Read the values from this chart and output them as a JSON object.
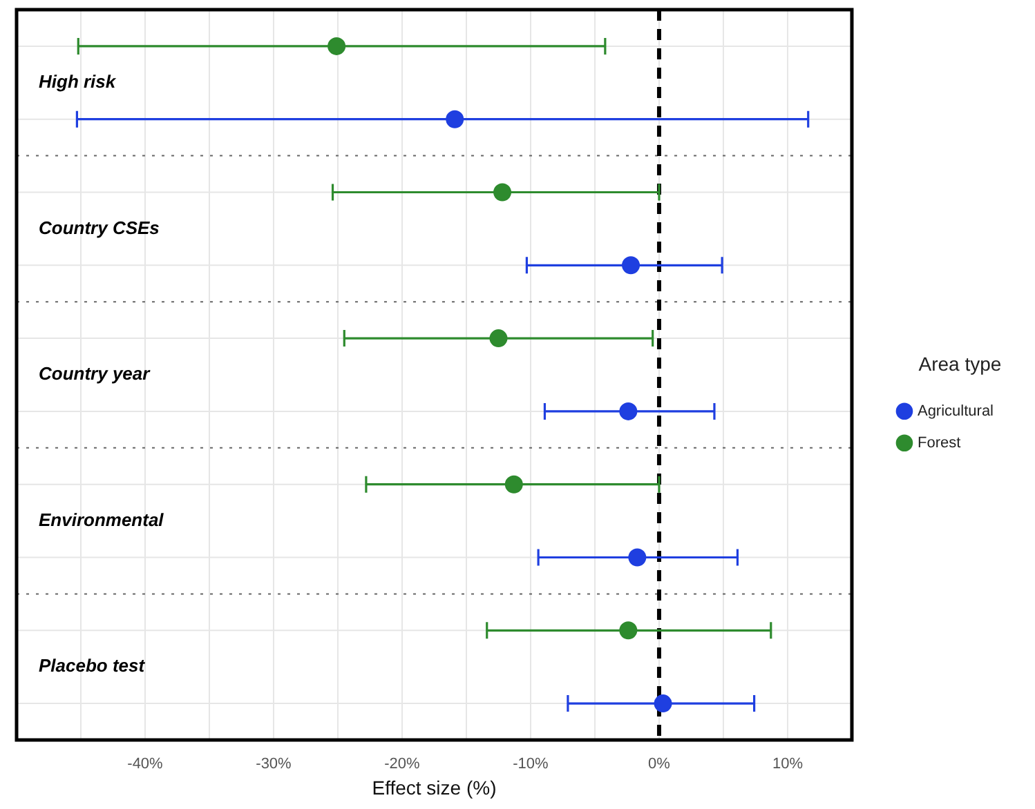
{
  "chart_data": {
    "type": "scatter",
    "orientation": "horizontal",
    "categories": [
      "High risk",
      "Country CSEs",
      "Country year",
      "Environmental",
      "Placebo test"
    ],
    "series": [
      {
        "name": "Agricultural",
        "color": "#1f3fe0",
        "values": [
          -15.9,
          -2.2,
          -2.4,
          -1.7,
          0.3
        ],
        "errors": [
          [
            -45.3,
            11.6
          ],
          [
            -10.3,
            4.9
          ],
          [
            -8.9,
            4.3
          ],
          [
            -9.4,
            6.1
          ],
          [
            -7.1,
            7.4
          ]
        ]
      },
      {
        "name": "Forest",
        "color": "#2e8b2e",
        "values": [
          -25.1,
          -12.2,
          -12.5,
          -11.3,
          -2.4
        ],
        "errors": [
          [
            -45.2,
            -4.2
          ],
          [
            -25.4,
            0
          ],
          [
            -24.5,
            -0.5
          ],
          [
            -22.8,
            0
          ],
          [
            -13.4,
            8.7
          ]
        ]
      }
    ],
    "xlim": [
      -50,
      15
    ],
    "xticks": [
      {
        "value": -45,
        "label": null
      },
      {
        "value": -40,
        "label": "-40%"
      },
      {
        "value": -35,
        "label": null
      },
      {
        "value": -30,
        "label": "-30%"
      },
      {
        "value": -25,
        "label": null
      },
      {
        "value": -20,
        "label": "-20%"
      },
      {
        "value": -15,
        "label": null
      },
      {
        "value": -10,
        "label": "-10%"
      },
      {
        "value": -5,
        "label": null
      },
      {
        "value": 0,
        "label": "0%"
      },
      {
        "value": 5,
        "label": null
      },
      {
        "value": 10,
        "label": "10%"
      }
    ],
    "xlabel": "Effect size (%)",
    "legend": "right",
    "legend_title": "Area type",
    "grid": true,
    "marker": "circle",
    "ref_lines": [
      {
        "axis": "x",
        "value": 0,
        "color": "#000000",
        "line_style": "dashed"
      }
    ]
  }
}
